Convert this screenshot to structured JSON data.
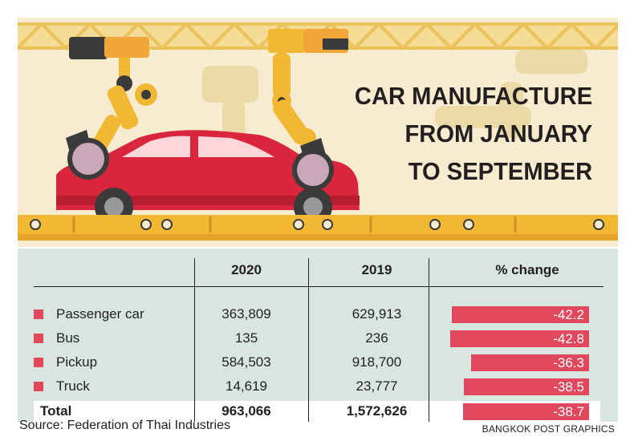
{
  "title_lines": [
    "CAR MANUFACTURE",
    "FROM JANUARY",
    "TO SEPTEMBER"
  ],
  "source": "Source: Federation of Thai Industries",
  "credit": "BANGKOK POST GRAPHICS",
  "colors": {
    "accent": "#e2485d",
    "banner": "#f7ecd0",
    "table_bg": "#d9e5df",
    "conveyor": "#f2b733",
    "car": "#d9263d"
  },
  "table": {
    "headers": [
      "",
      "2020",
      "2019",
      "% change"
    ],
    "rows": [
      {
        "name": "Passenger car",
        "y2020": "363,809",
        "y2019": "629,913",
        "pct": "-42.2"
      },
      {
        "name": "Bus",
        "y2020": "135",
        "y2019": "236",
        "pct": "-42.8"
      },
      {
        "name": "Pickup",
        "y2020": "584,503",
        "y2019": "918,700",
        "pct": "-36.3"
      },
      {
        "name": "Truck",
        "y2020": "14,619",
        "y2019": "23,777",
        "pct": "-38.5"
      }
    ],
    "total": {
      "name": "Total",
      "y2020": "963,066",
      "y2019": "1,572,626",
      "pct": "-38.7"
    }
  },
  "chart_data": {
    "type": "table",
    "columns": [
      "2020",
      "2019",
      "% change"
    ],
    "categories": [
      "Passenger car",
      "Bus",
      "Pickup",
      "Truck",
      "Total"
    ],
    "series": [
      {
        "name": "2020",
        "values": [
          363809,
          135,
          584503,
          14619,
          963066
        ]
      },
      {
        "name": "2019",
        "values": [
          629913,
          236,
          918700,
          23777,
          1572626
        ]
      },
      {
        "name": "% change",
        "values": [
          -42.2,
          -42.8,
          -36.3,
          -38.5,
          -38.7
        ]
      }
    ]
  }
}
